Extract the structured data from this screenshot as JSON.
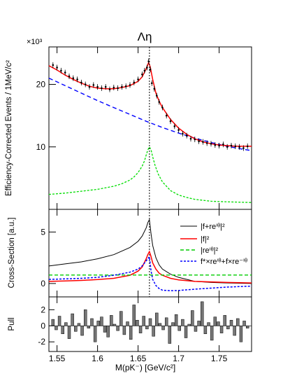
{
  "title": "Λη",
  "xlabel": "M(pK⁻) [GeV/c²]",
  "chart_data": [
    {
      "panel": "yield",
      "type": "line",
      "title": "Λη",
      "ylabel": "Efficiency-Corrected Events / 1MeV/c²",
      "multiplier": "×10³",
      "xlim": [
        1.54,
        1.79
      ],
      "ylim": [
        0,
        26
      ],
      "yticks": [
        10,
        20
      ],
      "marker_x": 1.664,
      "series": [
        {
          "role": "data",
          "x": [
            1.545,
            1.55,
            1.555,
            1.56,
            1.565,
            1.57,
            1.575,
            1.58,
            1.585,
            1.59,
            1.595,
            1.6,
            1.605,
            1.61,
            1.615,
            1.62,
            1.625,
            1.63,
            1.635,
            1.64,
            1.645,
            1.65,
            1.655,
            1.658,
            1.661,
            1.663,
            1.665,
            1.667,
            1.67,
            1.673,
            1.676,
            1.68,
            1.685,
            1.69,
            1.695,
            1.7,
            1.705,
            1.71,
            1.715,
            1.72,
            1.725,
            1.73,
            1.735,
            1.74,
            1.745,
            1.75,
            1.755,
            1.76,
            1.765,
            1.77,
            1.775,
            1.78,
            1.785
          ],
          "y": [
            23.1,
            22.7,
            22.2,
            21.9,
            21.3,
            21.0,
            20.8,
            20.3,
            20.0,
            19.6,
            19.9,
            19.6,
            19.4,
            19.6,
            19.2,
            19.5,
            19.4,
            19.6,
            19.7,
            19.9,
            20.3,
            20.8,
            21.6,
            22.2,
            22.7,
            23.7,
            22.4,
            20.2,
            19.3,
            18.2,
            17.2,
            16.3,
            15.0,
            14.1,
            13.3,
            12.7,
            12.1,
            11.8,
            11.3,
            11.2,
            10.9,
            10.8,
            10.6,
            10.5,
            10.3,
            10.2,
            10.4,
            10.0,
            10.2,
            10.1,
            10.0,
            9.8,
            10.1
          ]
        },
        {
          "role": "fit",
          "x": [
            1.54,
            1.55,
            1.56,
            1.57,
            1.58,
            1.59,
            1.6,
            1.61,
            1.62,
            1.63,
            1.64,
            1.65,
            1.655,
            1.66,
            1.663,
            1.665,
            1.668,
            1.672,
            1.676,
            1.68,
            1.69,
            1.7,
            1.71,
            1.72,
            1.73,
            1.74,
            1.75,
            1.76,
            1.77,
            1.78,
            1.79
          ],
          "y": [
            23.0,
            22.3,
            21.5,
            20.8,
            20.2,
            19.7,
            19.4,
            19.3,
            19.3,
            19.5,
            19.8,
            20.5,
            21.2,
            22.5,
            23.5,
            22.8,
            20.8,
            18.6,
            17.3,
            16.3,
            14.4,
            13.0,
            12.0,
            11.3,
            10.8,
            10.5,
            10.3,
            10.2,
            10.1,
            10.1,
            10.1
          ]
        },
        {
          "role": "background",
          "x": [
            1.54,
            1.56,
            1.58,
            1.6,
            1.62,
            1.64,
            1.66,
            1.68,
            1.7,
            1.72,
            1.74,
            1.76,
            1.78,
            1.79
          ],
          "y": [
            21.0,
            19.8,
            18.6,
            17.4,
            16.3,
            15.2,
            14.1,
            13.1,
            12.2,
            11.4,
            10.7,
            10.1,
            9.6,
            9.4
          ]
        },
        {
          "role": "signal",
          "x": [
            1.54,
            1.56,
            1.58,
            1.6,
            1.62,
            1.63,
            1.64,
            1.645,
            1.65,
            1.655,
            1.658,
            1.66,
            1.662,
            1.664,
            1.666,
            1.668,
            1.671,
            1.675,
            1.68,
            1.69,
            1.7,
            1.71,
            1.72,
            1.74,
            1.76,
            1.79
          ],
          "y": [
            2.4,
            2.6,
            2.9,
            3.2,
            3.7,
            4.1,
            4.7,
            5.2,
            5.9,
            6.9,
            7.8,
            8.7,
            9.5,
            10.0,
            9.5,
            8.4,
            7.0,
            5.6,
            4.4,
            3.0,
            2.3,
            1.9,
            1.6,
            1.3,
            1.2,
            1.1
          ]
        }
      ]
    },
    {
      "panel": "cross-section",
      "type": "line",
      "ylabel": "Cross-Section [a.u.]",
      "xlim": [
        1.54,
        1.79
      ],
      "ylim": [
        -1.3,
        7.2
      ],
      "yticks": [
        0,
        5
      ],
      "series": [
        {
          "name": "|f+reⁱᶿ|²",
          "x": [
            1.54,
            1.56,
            1.58,
            1.6,
            1.62,
            1.64,
            1.65,
            1.655,
            1.66,
            1.662,
            1.664,
            1.666,
            1.668,
            1.672,
            1.676,
            1.68,
            1.69,
            1.7,
            1.72,
            1.74,
            1.76,
            1.79
          ],
          "y": [
            1.7,
            1.9,
            2.1,
            2.4,
            2.8,
            3.5,
            4.1,
            4.6,
            5.4,
            5.9,
            6.2,
            4.8,
            3.7,
            2.5,
            1.8,
            1.4,
            0.9,
            0.6,
            0.2,
            0.1,
            0.05,
            0.0
          ]
        },
        {
          "name": "|f|²",
          "x": [
            1.54,
            1.56,
            1.58,
            1.6,
            1.62,
            1.64,
            1.65,
            1.655,
            1.66,
            1.662,
            1.664,
            1.666,
            1.668,
            1.672,
            1.676,
            1.68,
            1.69,
            1.7,
            1.72,
            1.76,
            1.79
          ],
          "y": [
            0.2,
            0.25,
            0.3,
            0.38,
            0.5,
            0.8,
            1.2,
            1.6,
            2.4,
            2.8,
            3.1,
            2.6,
            2.0,
            1.4,
            1.0,
            0.8,
            0.5,
            0.35,
            0.2,
            0.1,
            0.05
          ]
        },
        {
          "name": "|reⁱᶿ|²",
          "x": [
            1.54,
            1.79
          ],
          "y": [
            0.82,
            0.82
          ]
        },
        {
          "name": "f*×reⁱᶿ+f×re⁻ⁱᶿ",
          "x": [
            1.54,
            1.56,
            1.58,
            1.6,
            1.62,
            1.64,
            1.65,
            1.655,
            1.66,
            1.662,
            1.664,
            1.666,
            1.668,
            1.672,
            1.676,
            1.68,
            1.69,
            1.7,
            1.72,
            1.74,
            1.76,
            1.79
          ],
          "y": [
            0.4,
            0.45,
            0.5,
            0.6,
            0.8,
            1.1,
            1.4,
            1.7,
            2.2,
            2.4,
            2.6,
            1.2,
            0.4,
            -0.2,
            -0.5,
            -0.65,
            -0.7,
            -0.68,
            -0.55,
            -0.45,
            -0.35,
            -0.25
          ]
        }
      ]
    },
    {
      "panel": "pull",
      "type": "bar",
      "ylabel": "Pull",
      "xlim": [
        1.54,
        1.79
      ],
      "ylim": [
        -3.2,
        3.6
      ],
      "yticks": [
        -2,
        0,
        2
      ],
      "x": [
        1.545,
        1.549,
        1.553,
        1.557,
        1.561,
        1.565,
        1.569,
        1.573,
        1.577,
        1.581,
        1.585,
        1.589,
        1.593,
        1.597,
        1.601,
        1.605,
        1.609,
        1.613,
        1.617,
        1.621,
        1.625,
        1.629,
        1.633,
        1.637,
        1.641,
        1.645,
        1.649,
        1.653,
        1.657,
        1.661,
        1.665,
        1.669,
        1.673,
        1.677,
        1.681,
        1.685,
        1.689,
        1.693,
        1.697,
        1.701,
        1.705,
        1.709,
        1.713,
        1.717,
        1.721,
        1.725,
        1.729,
        1.733,
        1.737,
        1.741,
        1.745,
        1.749,
        1.753,
        1.757,
        1.761,
        1.765,
        1.769,
        1.773,
        1.777,
        1.781,
        1.785
      ],
      "values": [
        0.8,
        -0.5,
        1.2,
        -1.0,
        0.4,
        -1.6,
        1.5,
        -0.7,
        0.3,
        -1.2,
        2.0,
        -0.3,
        0.9,
        -2.0,
        0.6,
        1.1,
        -0.8,
        -1.4,
        1.3,
        0.2,
        -0.6,
        1.8,
        -1.1,
        0.5,
        -1.7,
        2.6,
        0.7,
        -0.9,
        1.2,
        -0.4,
        0.9,
        -1.3,
        1.6,
        0.3,
        -0.5,
        1.0,
        -2.2,
        0.4,
        1.4,
        -0.6,
        0.8,
        -1.5,
        0.2,
        1.9,
        -0.7,
        0.6,
        3.0,
        -1.0,
        0.4,
        -1.8,
        1.1,
        0.5,
        -0.9,
        1.3,
        -0.4,
        0.7,
        -1.2,
        0.9,
        -2.0,
        0.6,
        -0.3
      ]
    }
  ],
  "x_ticks": [
    1.55,
    1.6,
    1.65,
    1.7,
    1.75
  ]
}
